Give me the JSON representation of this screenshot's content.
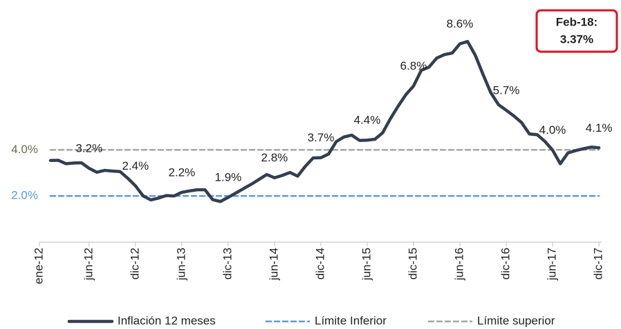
{
  "chart_data": {
    "type": "line",
    "categories": [
      "ene-12",
      null,
      null,
      null,
      null,
      "jun-12",
      null,
      null,
      null,
      null,
      null,
      "dic-12",
      null,
      null,
      null,
      null,
      null,
      "jun-13",
      null,
      null,
      null,
      null,
      null,
      "dic-13",
      null,
      null,
      null,
      null,
      null,
      "jun-14",
      null,
      null,
      null,
      null,
      null,
      "dic-14",
      null,
      null,
      null,
      null,
      null,
      "jun-15",
      null,
      null,
      null,
      null,
      null,
      "dic-15",
      null,
      null,
      null,
      null,
      null,
      "jun-16",
      null,
      null,
      null,
      null,
      null,
      "dic-16",
      null,
      null,
      null,
      null,
      null,
      "jun-17",
      null,
      null,
      null,
      null,
      null,
      "dic-17"
    ],
    "series": [
      {
        "name": "Inflación 12 meses",
        "color": "#333f50",
        "style": "solid",
        "values": [
          3.54,
          3.55,
          3.4,
          3.43,
          3.44,
          3.2,
          3.03,
          3.11,
          3.08,
          3.06,
          2.77,
          2.44,
          2.0,
          1.83,
          1.91,
          2.02,
          2.0,
          2.16,
          2.22,
          2.27,
          2.27,
          1.84,
          1.76,
          1.94,
          2.13,
          2.32,
          2.51,
          2.72,
          2.93,
          2.79,
          2.89,
          3.02,
          2.86,
          3.29,
          3.65,
          3.66,
          3.82,
          4.36,
          4.56,
          4.64,
          4.41,
          4.42,
          4.46,
          4.74,
          5.35,
          5.89,
          6.39,
          6.77,
          7.45,
          7.59,
          7.98,
          8.13,
          8.2,
          8.6,
          8.7,
          8.1,
          7.27,
          6.48,
          5.96,
          5.72,
          5.47,
          5.18,
          4.69,
          4.66,
          4.37,
          3.99,
          3.4,
          3.87,
          3.97,
          4.05,
          4.12,
          4.09
        ],
        "value_labels": [
          null,
          null,
          null,
          null,
          null,
          "3.2%",
          null,
          null,
          null,
          null,
          null,
          "2.4%",
          null,
          null,
          null,
          null,
          null,
          "2.2%",
          null,
          null,
          null,
          null,
          null,
          "1.9%",
          null,
          null,
          null,
          null,
          null,
          "2.8%",
          null,
          null,
          null,
          null,
          null,
          "3.7%",
          null,
          null,
          null,
          null,
          null,
          "4.4%",
          null,
          null,
          null,
          null,
          null,
          "6.8%",
          null,
          null,
          null,
          null,
          null,
          "8.6%",
          null,
          null,
          null,
          null,
          null,
          "5.7%",
          null,
          null,
          null,
          null,
          null,
          "4.0%",
          null,
          null,
          null,
          null,
          null,
          "4.1%"
        ]
      },
      {
        "name": "Límite Inferior",
        "color": "#5b9bd5",
        "style": "dashed",
        "values": [
          2,
          2,
          2,
          2,
          2,
          2,
          2,
          2,
          2,
          2,
          2,
          2,
          2,
          2,
          2,
          2,
          2,
          2,
          2,
          2,
          2,
          2,
          2,
          2,
          2,
          2,
          2,
          2,
          2,
          2,
          2,
          2,
          2,
          2,
          2,
          2,
          2,
          2,
          2,
          2,
          2,
          2,
          2,
          2,
          2,
          2,
          2,
          2,
          2,
          2,
          2,
          2,
          2,
          2,
          2,
          2,
          2,
          2,
          2,
          2,
          2,
          2,
          2,
          2,
          2,
          2,
          2,
          2,
          2,
          2,
          2,
          2
        ]
      },
      {
        "name": "Límite superior",
        "color": "#a5a5a5",
        "style": "dashed",
        "values": [
          4,
          4,
          4,
          4,
          4,
          4,
          4,
          4,
          4,
          4,
          4,
          4,
          4,
          4,
          4,
          4,
          4,
          4,
          4,
          4,
          4,
          4,
          4,
          4,
          4,
          4,
          4,
          4,
          4,
          4,
          4,
          4,
          4,
          4,
          4,
          4,
          4,
          4,
          4,
          4,
          4,
          4,
          4,
          4,
          4,
          4,
          4,
          4,
          4,
          4,
          4,
          4,
          4,
          4,
          4,
          4,
          4,
          4,
          4,
          4,
          4,
          4,
          4,
          4,
          4,
          4,
          4,
          4,
          4,
          4,
          4,
          4
        ]
      }
    ],
    "ylim": [
      0,
      10.5
    ],
    "yticks": [
      {
        "value": 4,
        "label": "4.0%"
      },
      {
        "value": 2,
        "label": "2.0%"
      }
    ],
    "ytick_colors": [
      "#6b6a4e",
      "#5b9bd5"
    ],
    "callout": [
      "Feb-18:",
      "3.37%"
    ],
    "legend": "bottom"
  }
}
